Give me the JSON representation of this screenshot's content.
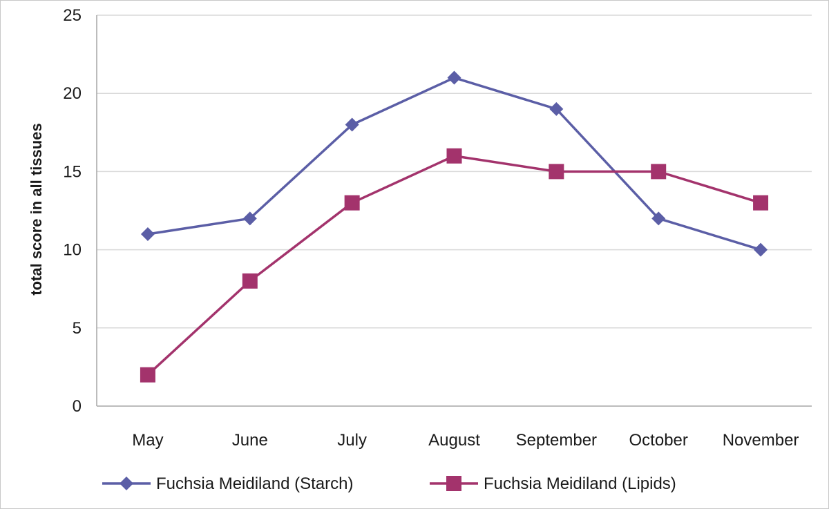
{
  "chart_data": {
    "type": "line",
    "categories": [
      "May",
      "June",
      "July",
      "August",
      "September",
      "October",
      "November"
    ],
    "series": [
      {
        "name": "Fuchsia Meidiland (Starch)",
        "values": [
          11,
          12,
          18,
          21,
          19,
          12,
          10
        ],
        "color": "#5b5ea6",
        "marker": "diamond"
      },
      {
        "name": "Fuchsia Meidiland (Lipids)",
        "values": [
          2,
          8,
          13,
          16,
          15,
          15,
          13
        ],
        "color": "#a3336c",
        "marker": "square"
      }
    ],
    "ylabel": "total score in all tissues",
    "xlabel": "",
    "title": "",
    "ylim": [
      0,
      25
    ],
    "yticks": [
      0,
      5,
      10,
      15,
      20,
      25
    ],
    "grid": "horizontal",
    "gridColor": "#d9d9d9",
    "axisColor": "#a6a6a6",
    "legend": "bottom"
  }
}
